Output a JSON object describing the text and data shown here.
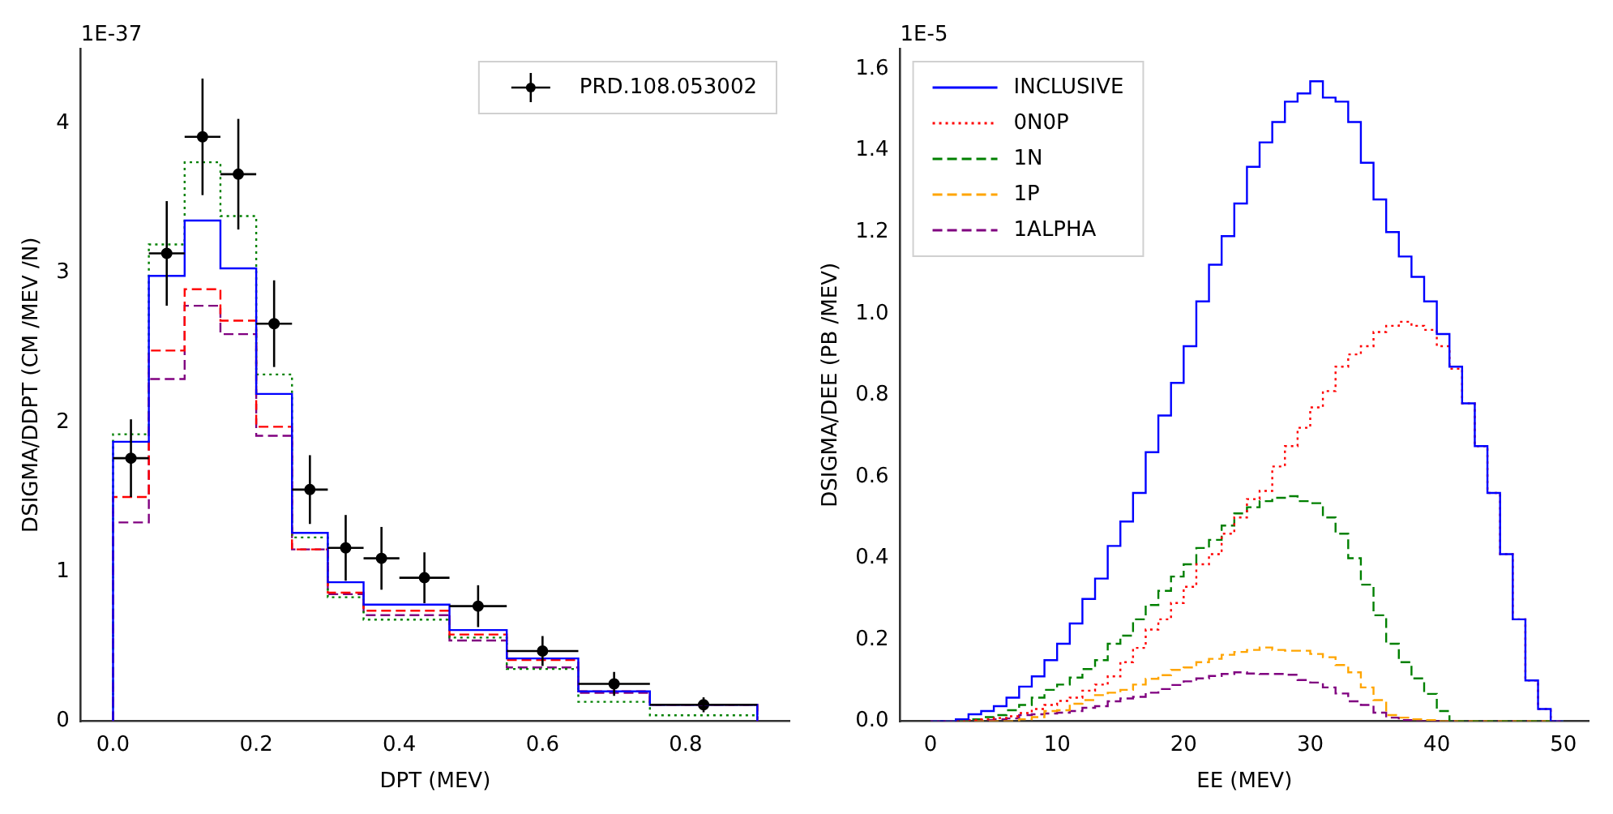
{
  "chart_data": [
    {
      "type": "histogram",
      "xlabel": "DPT (MEV)",
      "ylabel": "DSIGMA/DDPT (CM /MEV /N)",
      "annotations": [
        "1E-37"
      ],
      "bins": [
        0,
        0.05,
        0.1,
        0.15,
        0.2,
        0.25,
        0.3,
        0.35,
        0.4,
        0.47,
        0.55,
        0.65,
        0.75,
        0.9
      ],
      "series": [
        {
          "color": "#0000ff",
          "line_style": "solid",
          "values": [
            1.87,
            2.98,
            3.35,
            3.03,
            2.19,
            1.26,
            0.93,
            0.78,
            0.78,
            0.61,
            0.42,
            0.2,
            0.11
          ]
        },
        {
          "color": "#ff0000",
          "line_style": "dashed",
          "values": [
            1.5,
            2.48,
            2.89,
            2.68,
            1.97,
            1.15,
            0.86,
            0.74,
            0.74,
            0.58,
            0.41,
            0.2,
            0.11
          ]
        },
        {
          "color": "#008000",
          "line_style": "dotted",
          "values": [
            1.92,
            3.19,
            3.74,
            3.38,
            2.32,
            1.23,
            0.83,
            0.68,
            0.68,
            0.56,
            0.35,
            0.13,
            0.04
          ]
        },
        {
          "color": "#800080",
          "line_style": "dashed",
          "values": [
            1.33,
            2.29,
            2.78,
            2.59,
            1.91,
            1.15,
            0.85,
            0.71,
            0.71,
            0.54,
            0.36,
            0.19,
            0.11
          ]
        },
        {
          "type": "scatter",
          "name": "PRD.108.053002",
          "color": "#000000",
          "marker": "circle",
          "x": [
            0.025,
            0.075,
            0.125,
            0.175,
            0.225,
            0.275,
            0.325,
            0.375,
            0.435,
            0.51,
            0.6,
            0.7,
            0.825
          ],
          "values": [
            1.76,
            3.13,
            3.91,
            3.66,
            2.66,
            1.55,
            1.16,
            1.09,
            0.96,
            0.77,
            0.47,
            0.25,
            0.11
          ],
          "errors": [
            0.26,
            0.35,
            0.39,
            0.37,
            0.29,
            0.23,
            0.22,
            0.21,
            0.17,
            0.14,
            0.1,
            0.08,
            0.05
          ],
          "xerrors": [
            0.025,
            0.025,
            0.025,
            0.025,
            0.025,
            0.025,
            0.025,
            0.025,
            0.035,
            0.04,
            0.05,
            0.05,
            0.075
          ]
        }
      ],
      "xlim": [
        -0.045,
        0.945
      ],
      "xticks": [
        {
          "value": 0,
          "label": "0.0"
        },
        0.2,
        0.4,
        0.6,
        0.8
      ],
      "ylim": [
        0,
        4.5
      ],
      "yticks": [
        0,
        1,
        2,
        3,
        4
      ],
      "legend": "top right",
      "grid": false
    },
    {
      "type": "histogram",
      "xlabel": "EE (MEV)",
      "ylabel": "DSIGMA/DEE (PB /MEV)",
      "annotations": [
        "1E-5"
      ],
      "bins": [
        0,
        1,
        2,
        3,
        4,
        5,
        6,
        7,
        8,
        9,
        10,
        11,
        12,
        13,
        14,
        15,
        16,
        17,
        18,
        19,
        20,
        21,
        22,
        23,
        24,
        25,
        26,
        27,
        28,
        29,
        30,
        31,
        32,
        33,
        34,
        35,
        36,
        37,
        38,
        39,
        40,
        41,
        42,
        43,
        44,
        45,
        46,
        47,
        48,
        49,
        50
      ],
      "series": [
        {
          "name": "INCLUSIVE",
          "color": "#0000ff",
          "line_style": "solid",
          "values": [
            0,
            0,
            0.005,
            0.017,
            0.025,
            0.037,
            0.058,
            0.085,
            0.11,
            0.15,
            0.19,
            0.24,
            0.3,
            0.35,
            0.43,
            0.49,
            0.56,
            0.66,
            0.75,
            0.83,
            0.92,
            1.03,
            1.12,
            1.19,
            1.27,
            1.36,
            1.42,
            1.47,
            1.52,
            1.54,
            1.57,
            1.53,
            1.52,
            1.47,
            1.37,
            1.28,
            1.2,
            1.14,
            1.09,
            1.03,
            0.95,
            0.87,
            0.78,
            0.675,
            0.56,
            0.41,
            0.25,
            0.1,
            0.03,
            0
          ]
        },
        {
          "name": "0N0P",
          "color": "#ff0000",
          "line_style": "dotted",
          "values": [
            0,
            0,
            0,
            0.003,
            0.005,
            0.008,
            0.012,
            0.02,
            0.03,
            0.04,
            0.05,
            0.058,
            0.075,
            0.09,
            0.11,
            0.145,
            0.18,
            0.225,
            0.25,
            0.29,
            0.33,
            0.385,
            0.41,
            0.46,
            0.5,
            0.545,
            0.565,
            0.625,
            0.675,
            0.72,
            0.77,
            0.81,
            0.87,
            0.9,
            0.92,
            0.955,
            0.97,
            0.98,
            0.97,
            0.96,
            0.92,
            0.865,
            0.78,
            0.675,
            0.56,
            0.41,
            0.25,
            0.1,
            0.03,
            0
          ]
        },
        {
          "name": "1N",
          "color": "#008000",
          "line_style": "dashed",
          "values": [
            0,
            0,
            0,
            0.005,
            0.01,
            0.015,
            0.027,
            0.04,
            0.058,
            0.077,
            0.09,
            0.107,
            0.128,
            0.15,
            0.19,
            0.21,
            0.25,
            0.285,
            0.32,
            0.355,
            0.385,
            0.425,
            0.445,
            0.48,
            0.51,
            0.525,
            0.54,
            0.548,
            0.552,
            0.54,
            0.535,
            0.5,
            0.46,
            0.4,
            0.335,
            0.26,
            0.19,
            0.145,
            0.105,
            0.067,
            0.025,
            0,
            0,
            0,
            0,
            0,
            0,
            0,
            0,
            0
          ]
        },
        {
          "name": "1P",
          "color": "#ffa500",
          "line_style": "dashed",
          "values": [
            0,
            0,
            0,
            0,
            0,
            0,
            0,
            0.005,
            0.01,
            0.025,
            0.027,
            0.043,
            0.052,
            0.064,
            0.07,
            0.077,
            0.09,
            0.104,
            0.113,
            0.126,
            0.132,
            0.145,
            0.153,
            0.163,
            0.17,
            0.175,
            0.181,
            0.175,
            0.173,
            0.173,
            0.165,
            0.157,
            0.138,
            0.12,
            0.083,
            0.052,
            0.015,
            0.009,
            0.005,
            0.003,
            0,
            0,
            0,
            0,
            0,
            0,
            0,
            0,
            0,
            0
          ]
        },
        {
          "name": "1ALPHA",
          "color": "#800080",
          "line_style": "dashed",
          "values": [
            0,
            0,
            0,
            0.003,
            0.003,
            0.005,
            0.007,
            0.015,
            0.017,
            0.019,
            0.021,
            0.025,
            0.033,
            0.037,
            0.049,
            0.056,
            0.06,
            0.07,
            0.079,
            0.089,
            0.098,
            0.105,
            0.111,
            0.116,
            0.12,
            0.117,
            0.116,
            0.116,
            0.114,
            0.101,
            0.095,
            0.083,
            0.068,
            0.049,
            0.04,
            0.021,
            0.009,
            0.003,
            0,
            0,
            0,
            0,
            0,
            0,
            0,
            0,
            0,
            0,
            0,
            0
          ]
        }
      ],
      "xlim": [
        -2.4,
        52
      ],
      "xticks": [
        0,
        10,
        20,
        30,
        40,
        50
      ],
      "ylim": [
        0,
        1.65
      ],
      "yticks": [
        {
          "value": 0,
          "label": "0.0"
        },
        0.2,
        0.4,
        0.6,
        0.8,
        {
          "value": 1,
          "label": "1.0"
        },
        1.2,
        1.4,
        1.6
      ],
      "legend": "top left",
      "grid": false
    }
  ]
}
